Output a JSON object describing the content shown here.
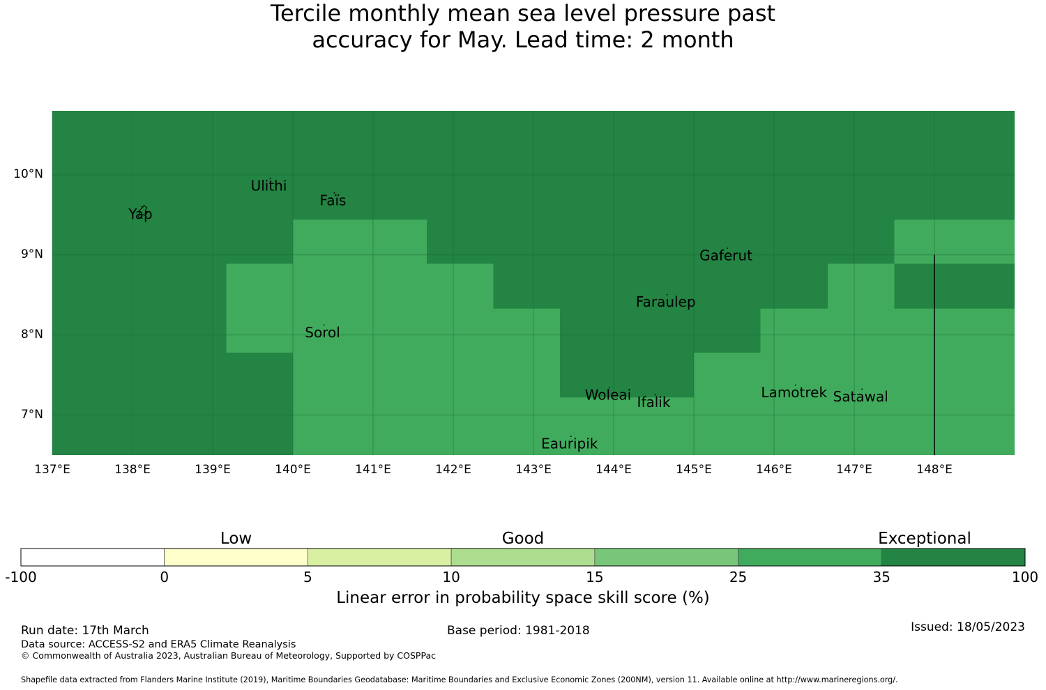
{
  "title": {
    "line1": "Tercile monthly mean sea level pressure past",
    "line2": "accuracy for May. Lead time: 2 month"
  },
  "map": {
    "lon_ticks": [
      "137°E",
      "138°E",
      "139°E",
      "140°E",
      "141°E",
      "142°E",
      "143°E",
      "144°E",
      "145°E",
      "146°E",
      "147°E",
      "148°E"
    ],
    "lat_ticks": [
      "10°N",
      "9°N",
      "8°N",
      "7°N"
    ],
    "extent": {
      "lon_min": 137.0,
      "lon_max": 149.0,
      "lat_min": 6.5,
      "lat_max": 10.8
    },
    "background_category": "Exceptional",
    "good_cells": [
      {
        "lon0": 140.0,
        "lon1": 141.67,
        "lat0": 6.5,
        "lat1": 9.44
      },
      {
        "lon0": 139.17,
        "lon1": 140.0,
        "lat0": 7.78,
        "lat1": 8.89
      },
      {
        "lon0": 141.67,
        "lon1": 142.5,
        "lat0": 6.5,
        "lat1": 8.89
      },
      {
        "lon0": 142.5,
        "lon1": 143.33,
        "lat0": 6.5,
        "lat1": 8.33
      },
      {
        "lon0": 143.33,
        "lon1": 145.0,
        "lat0": 6.5,
        "lat1": 7.22
      },
      {
        "lon0": 145.0,
        "lon1": 145.83,
        "lat0": 6.5,
        "lat1": 7.78
      },
      {
        "lon0": 145.83,
        "lon1": 146.67,
        "lat0": 6.5,
        "lat1": 8.33
      },
      {
        "lon0": 146.67,
        "lon1": 147.5,
        "lat0": 6.5,
        "lat1": 8.89
      },
      {
        "lon0": 147.5,
        "lon1": 149.0,
        "lat0": 6.5,
        "lat1": 8.33
      },
      {
        "lon0": 147.5,
        "lon1": 149.0,
        "lat0": 8.89,
        "lat1": 9.44
      }
    ],
    "places": [
      {
        "name": "Yap",
        "lon": 138.1,
        "lat": 9.5
      },
      {
        "name": "Ulithi",
        "lon": 139.7,
        "lat": 9.85
      },
      {
        "name": "Faïs",
        "lon": 140.5,
        "lat": 9.67
      },
      {
        "name": "Gaferut",
        "lon": 145.4,
        "lat": 8.98
      },
      {
        "name": "Faraulep",
        "lon": 144.65,
        "lat": 8.4
      },
      {
        "name": "Sorol",
        "lon": 140.37,
        "lat": 8.02
      },
      {
        "name": "Woleai",
        "lon": 143.93,
        "lat": 7.24
      },
      {
        "name": "Ifalik",
        "lon": 144.5,
        "lat": 7.15
      },
      {
        "name": "Lamotrek",
        "lon": 146.25,
        "lat": 7.27
      },
      {
        "name": "Satawal",
        "lon": 147.08,
        "lat": 7.22
      },
      {
        "name": "Eauripik",
        "lon": 143.45,
        "lat": 6.63
      }
    ],
    "boundary_line": {
      "lon": 148.0,
      "lat0": 6.5,
      "lat1": 9.0
    }
  },
  "colorbar": {
    "categories": [
      {
        "label": "Low",
        "at_index": 1.5
      },
      {
        "label": "Good",
        "at_index": 3.5
      },
      {
        "label": "Exceptional",
        "at_index": 6.3
      }
    ],
    "ticks": [
      "-100",
      "0",
      "5",
      "10",
      "15",
      "25",
      "35",
      "100"
    ],
    "colors": [
      "#ffffff",
      "#ffffcc",
      "#d9f0a3",
      "#addd8e",
      "#78c679",
      "#41ab5d",
      "#238443"
    ],
    "axis_label": "Linear error in probability space skill score (%)"
  },
  "footer": {
    "run_date": "Run date: 17th March",
    "base_period": "Base period: 1981-2018",
    "issued": "Issued: 18/05/2023",
    "data_source": "Data source: ACCESS-S2 and ERA5 Climate Reanalysis",
    "copyright": "© Commonwealth of Australia 2023, Australian Bureau of Meteorology, Supported by COSPPac",
    "shapefile": "Shapefile data extracted from Flanders Marine Institute (2019), Maritime Boundaries Geodatabase: Maritime Boundaries and Exclusive Economic Zones (200NM), version 11. Available online at http://www.marineregions.org/."
  },
  "colors": {
    "exceptional": "#238443",
    "good": "#41ab5d",
    "grid": "#1a6b34",
    "text": "#000000"
  }
}
